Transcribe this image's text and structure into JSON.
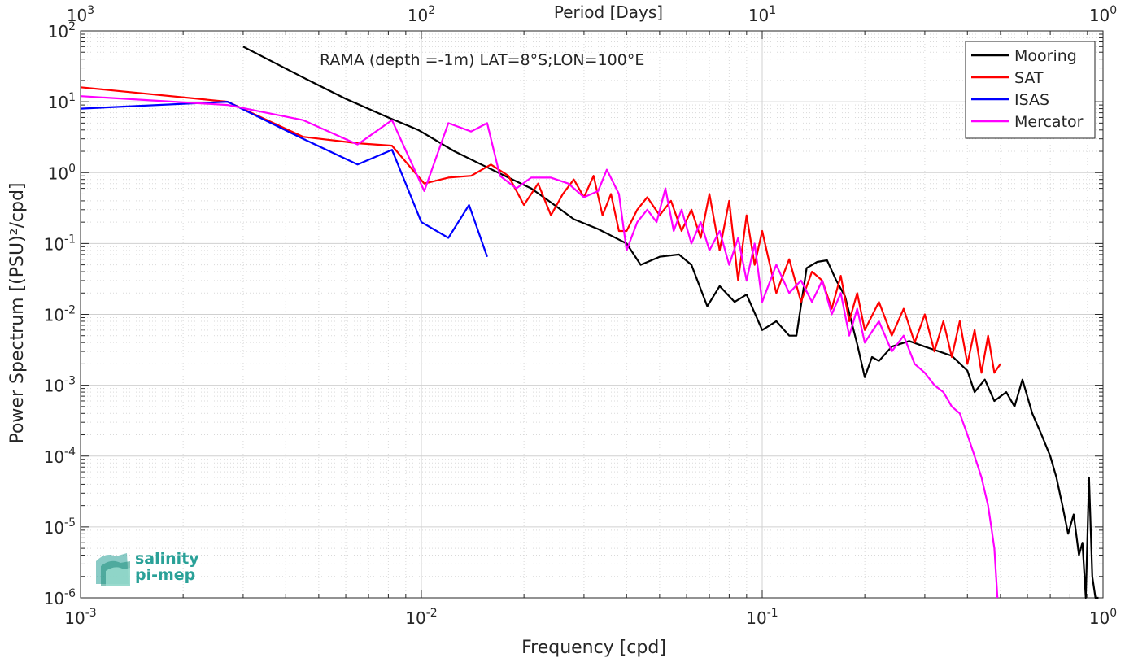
{
  "chart_data": {
    "type": "line",
    "title": "RAMA (depth =-1m) LAT=8°S;LON=100°E",
    "xlabel": "Frequency [cpd]",
    "ylabel": "Power Spectrum [(PSU)²/cpd]",
    "top_xlabel": "Period [Days]",
    "xscale": "log",
    "yscale": "log",
    "xlim": [
      0.001,
      1
    ],
    "ylim": [
      1e-06,
      100
    ],
    "grid": true,
    "legend_position": "top-right",
    "x_tick_labels": [
      {
        "value": 0.001,
        "base": "10",
        "exp": "-3"
      },
      {
        "value": 0.01,
        "base": "10",
        "exp": "-2"
      },
      {
        "value": 0.1,
        "base": "10",
        "exp": "-1"
      },
      {
        "value": 1,
        "base": "10",
        "exp": "0"
      }
    ],
    "y_tick_labels": [
      {
        "value": 100,
        "base": "10",
        "exp": "2"
      },
      {
        "value": 10,
        "base": "10",
        "exp": "1"
      },
      {
        "value": 1,
        "base": "10",
        "exp": "0"
      },
      {
        "value": 0.1,
        "base": "10",
        "exp": "-1"
      },
      {
        "value": 0.01,
        "base": "10",
        "exp": "-2"
      },
      {
        "value": 0.001,
        "base": "10",
        "exp": "-3"
      },
      {
        "value": 0.0001,
        "base": "10",
        "exp": "-4"
      },
      {
        "value": 1e-05,
        "base": "10",
        "exp": "-5"
      },
      {
        "value": 1e-06,
        "base": "10",
        "exp": "-6"
      }
    ],
    "top_tick_labels": [
      {
        "value": 0.001,
        "base": "10",
        "exp": "3"
      },
      {
        "value": 0.01,
        "base": "10",
        "exp": "2"
      },
      {
        "value": 0.1,
        "base": "10",
        "exp": "1"
      },
      {
        "value": 1,
        "base": "10",
        "exp": "0"
      }
    ],
    "series": [
      {
        "name": "Mooring",
        "color": "#000000",
        "x": [
          0.003,
          0.0045,
          0.006,
          0.008,
          0.0098,
          0.0125,
          0.015,
          0.018,
          0.021,
          0.024,
          0.028,
          0.033,
          0.04,
          0.044,
          0.05,
          0.057,
          0.062,
          0.069,
          0.075,
          0.083,
          0.09,
          0.1,
          0.11,
          0.12,
          0.126,
          0.135,
          0.145,
          0.155,
          0.165,
          0.175,
          0.19,
          0.2,
          0.21,
          0.22,
          0.24,
          0.27,
          0.3,
          0.33,
          0.36,
          0.4,
          0.42,
          0.45,
          0.48,
          0.52,
          0.55,
          0.58,
          0.62,
          0.66,
          0.7,
          0.73,
          0.76,
          0.79,
          0.82,
          0.85,
          0.87,
          0.89,
          0.91,
          0.93,
          0.95,
          0.97
        ],
        "y": [
          60,
          22,
          11,
          6,
          4,
          2,
          1.3,
          0.85,
          0.6,
          0.38,
          0.22,
          0.16,
          0.1,
          0.05,
          0.065,
          0.07,
          0.05,
          0.013,
          0.025,
          0.015,
          0.019,
          0.006,
          0.008,
          0.005,
          0.005,
          0.045,
          0.055,
          0.058,
          0.03,
          0.018,
          0.0038,
          0.0013,
          0.0025,
          0.0022,
          0.0035,
          0.0042,
          0.0035,
          0.003,
          0.0026,
          0.0016,
          0.0008,
          0.0012,
          0.0006,
          0.0008,
          0.0005,
          0.0012,
          0.0004,
          0.0002,
          0.0001,
          5e-05,
          2e-05,
          8e-06,
          1.5e-05,
          4e-06,
          6e-06,
          1e-06,
          5e-05,
          2e-06,
          1e-06,
          1e-06
        ]
      },
      {
        "name": "SAT",
        "color": "#ff0000",
        "x": [
          0.001,
          0.0027,
          0.0045,
          0.0065,
          0.0082,
          0.0102,
          0.012,
          0.014,
          0.016,
          0.018,
          0.02,
          0.022,
          0.024,
          0.026,
          0.028,
          0.03,
          0.032,
          0.034,
          0.036,
          0.038,
          0.04,
          0.043,
          0.046,
          0.05,
          0.054,
          0.058,
          0.062,
          0.066,
          0.07,
          0.075,
          0.08,
          0.085,
          0.09,
          0.095,
          0.1,
          0.11,
          0.12,
          0.13,
          0.14,
          0.15,
          0.16,
          0.17,
          0.18,
          0.19,
          0.2,
          0.22,
          0.24,
          0.26,
          0.28,
          0.3,
          0.32,
          0.34,
          0.36,
          0.38,
          0.4,
          0.42,
          0.44,
          0.46,
          0.48,
          0.5
        ],
        "y": [
          16,
          10,
          3.2,
          2.6,
          2.4,
          0.7,
          0.85,
          0.9,
          1.3,
          0.9,
          0.35,
          0.7,
          0.25,
          0.5,
          0.8,
          0.45,
          0.9,
          0.25,
          0.5,
          0.15,
          0.15,
          0.3,
          0.45,
          0.25,
          0.4,
          0.15,
          0.3,
          0.12,
          0.5,
          0.08,
          0.4,
          0.03,
          0.25,
          0.05,
          0.15,
          0.02,
          0.06,
          0.015,
          0.04,
          0.03,
          0.012,
          0.035,
          0.008,
          0.02,
          0.006,
          0.015,
          0.005,
          0.012,
          0.004,
          0.01,
          0.003,
          0.008,
          0.0025,
          0.008,
          0.002,
          0.006,
          0.0015,
          0.005,
          0.0015,
          0.002
        ]
      },
      {
        "name": "ISAS",
        "color": "#0000ff",
        "x": [
          0.001,
          0.0027,
          0.0045,
          0.0065,
          0.0082,
          0.01,
          0.012,
          0.0138,
          0.0156
        ],
        "y": [
          8,
          10,
          3,
          1.3,
          2.1,
          0.2,
          0.12,
          0.35,
          0.065
        ]
      },
      {
        "name": "Mercator",
        "color": "#ff00ff",
        "x": [
          0.001,
          0.0027,
          0.0045,
          0.0065,
          0.0082,
          0.0102,
          0.012,
          0.014,
          0.0156,
          0.017,
          0.019,
          0.021,
          0.024,
          0.027,
          0.03,
          0.033,
          0.035,
          0.038,
          0.04,
          0.043,
          0.046,
          0.049,
          0.052,
          0.055,
          0.058,
          0.062,
          0.066,
          0.07,
          0.075,
          0.08,
          0.085,
          0.09,
          0.095,
          0.1,
          0.11,
          0.12,
          0.13,
          0.14,
          0.15,
          0.16,
          0.17,
          0.18,
          0.19,
          0.2,
          0.22,
          0.24,
          0.26,
          0.28,
          0.3,
          0.32,
          0.34,
          0.36,
          0.38,
          0.4,
          0.42,
          0.44,
          0.46,
          0.47,
          0.48,
          0.49
        ],
        "y": [
          12,
          9,
          5.5,
          2.5,
          5.5,
          0.55,
          5,
          3.8,
          5,
          0.9,
          0.6,
          0.85,
          0.85,
          0.7,
          0.45,
          0.55,
          1.1,
          0.5,
          0.08,
          0.2,
          0.3,
          0.2,
          0.6,
          0.15,
          0.3,
          0.1,
          0.2,
          0.08,
          0.15,
          0.05,
          0.12,
          0.03,
          0.1,
          0.015,
          0.05,
          0.02,
          0.03,
          0.015,
          0.03,
          0.01,
          0.02,
          0.005,
          0.012,
          0.004,
          0.008,
          0.003,
          0.005,
          0.002,
          0.0015,
          0.001,
          0.0008,
          0.0005,
          0.0004,
          0.0002,
          0.0001,
          5e-05,
          2e-05,
          1e-05,
          5e-06,
          1e-06
        ]
      }
    ]
  },
  "logo": {
    "line1": "salinity",
    "line2": "pi-mep",
    "color": "#2aa198"
  }
}
